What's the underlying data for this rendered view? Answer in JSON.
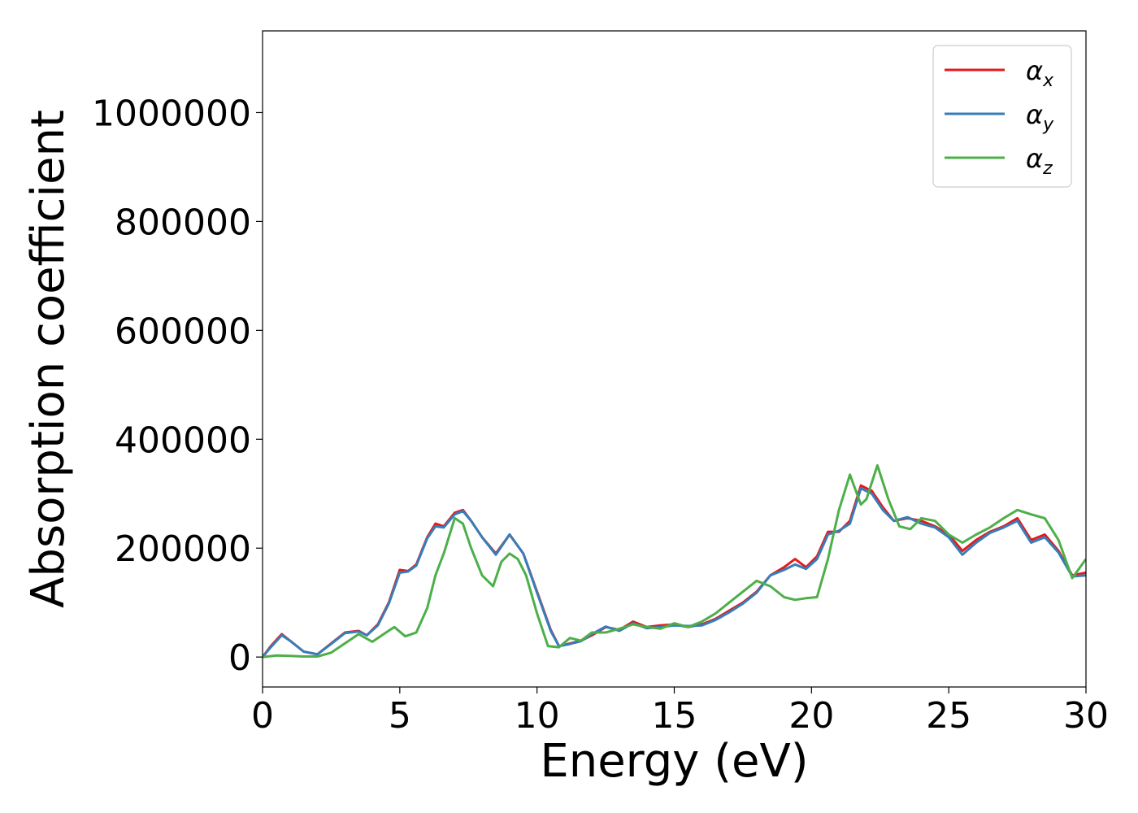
{
  "chart_data": {
    "type": "line",
    "title": "",
    "xlabel": "Energy (eV)",
    "ylabel": "Absorption coefficient",
    "xlim": [
      0,
      30
    ],
    "ylim": [
      -55000,
      1150000
    ],
    "xticks": [
      0,
      5,
      10,
      15,
      20,
      25,
      30
    ],
    "xtick_labels": [
      "0",
      "5",
      "10",
      "15",
      "20",
      "25",
      "30"
    ],
    "yticks": [
      0,
      200000,
      400000,
      600000,
      800000,
      1000000
    ],
    "ytick_labels": [
      "0",
      "200000",
      "400000",
      "600000",
      "800000",
      "1000000"
    ],
    "grid": false,
    "legend_position": "top-right",
    "series": [
      {
        "name": "α",
        "subscript": "x",
        "color": "#e41a1c",
        "x": [
          0,
          0.3,
          0.7,
          1.0,
          1.5,
          2.0,
          2.5,
          3.0,
          3.5,
          3.8,
          4.2,
          4.6,
          5.0,
          5.3,
          5.6,
          6.0,
          6.3,
          6.6,
          7.0,
          7.3,
          7.6,
          8.0,
          8.5,
          9.0,
          9.5,
          10.0,
          10.5,
          10.8,
          11.2,
          11.6,
          12.0,
          12.5,
          13.0,
          13.5,
          14.0,
          14.5,
          15.0,
          15.5,
          16.0,
          16.5,
          17.0,
          17.5,
          18.0,
          18.5,
          19.0,
          19.4,
          19.8,
          20.2,
          20.6,
          21.0,
          21.4,
          21.8,
          22.2,
          22.6,
          23.0,
          23.5,
          24.0,
          24.5,
          25.0,
          25.5,
          26.0,
          26.5,
          27.0,
          27.5,
          28.0,
          28.5,
          29.0,
          29.5,
          30.0
        ],
        "y": [
          0,
          20000,
          42000,
          30000,
          10000,
          5000,
          25000,
          45000,
          48000,
          40000,
          60000,
          100000,
          160000,
          158000,
          170000,
          220000,
          245000,
          240000,
          265000,
          270000,
          250000,
          220000,
          190000,
          225000,
          190000,
          120000,
          50000,
          20000,
          25000,
          30000,
          40000,
          55000,
          50000,
          65000,
          55000,
          58000,
          60000,
          55000,
          60000,
          70000,
          85000,
          100000,
          120000,
          150000,
          165000,
          180000,
          165000,
          185000,
          230000,
          230000,
          250000,
          315000,
          305000,
          275000,
          250000,
          255000,
          250000,
          240000,
          225000,
          195000,
          215000,
          230000,
          240000,
          255000,
          215000,
          225000,
          195000,
          150000,
          155000
        ]
      },
      {
        "name": "α",
        "subscript": "y",
        "color": "#377eb8",
        "x": [
          0,
          0.3,
          0.7,
          1.0,
          1.5,
          2.0,
          2.5,
          3.0,
          3.5,
          3.8,
          4.2,
          4.6,
          5.0,
          5.3,
          5.6,
          6.0,
          6.3,
          6.6,
          7.0,
          7.3,
          7.6,
          8.0,
          8.5,
          9.0,
          9.5,
          10.0,
          10.5,
          10.8,
          11.2,
          11.6,
          12.0,
          12.5,
          13.0,
          13.5,
          14.0,
          14.5,
          15.0,
          15.5,
          16.0,
          16.5,
          17.0,
          17.5,
          18.0,
          18.5,
          19.0,
          19.4,
          19.8,
          20.2,
          20.6,
          21.0,
          21.4,
          21.8,
          22.2,
          22.6,
          23.0,
          23.5,
          24.0,
          24.5,
          25.0,
          25.5,
          26.0,
          26.5,
          27.0,
          27.5,
          28.0,
          28.5,
          29.0,
          29.5,
          30.0
        ],
        "y": [
          0,
          18000,
          40000,
          30000,
          10000,
          5000,
          24000,
          44000,
          47000,
          40000,
          58000,
          98000,
          155000,
          157000,
          168000,
          218000,
          240000,
          238000,
          262000,
          268000,
          250000,
          220000,
          188000,
          225000,
          190000,
          118000,
          48000,
          20000,
          24000,
          29000,
          42000,
          56000,
          48000,
          62000,
          53000,
          55000,
          58000,
          57000,
          58000,
          68000,
          82000,
          98000,
          118000,
          150000,
          160000,
          170000,
          162000,
          180000,
          225000,
          232000,
          245000,
          310000,
          300000,
          270000,
          250000,
          257000,
          245000,
          238000,
          220000,
          188000,
          210000,
          228000,
          238000,
          250000,
          210000,
          220000,
          192000,
          148000,
          150000
        ]
      },
      {
        "name": "α",
        "subscript": "z",
        "color": "#4daf4a",
        "x": [
          0,
          0.5,
          1.0,
          1.5,
          2.0,
          2.5,
          3.0,
          3.5,
          4.0,
          4.5,
          4.8,
          5.2,
          5.6,
          6.0,
          6.3,
          6.6,
          7.0,
          7.3,
          7.6,
          8.0,
          8.4,
          8.7,
          9.0,
          9.3,
          9.6,
          10.0,
          10.4,
          10.8,
          11.2,
          11.6,
          12.0,
          12.5,
          13.0,
          13.5,
          14.0,
          14.5,
          15.0,
          15.5,
          16.0,
          16.5,
          17.0,
          17.5,
          18.0,
          18.5,
          19.0,
          19.4,
          19.8,
          20.2,
          20.6,
          21.0,
          21.4,
          21.8,
          22.0,
          22.4,
          22.8,
          23.2,
          23.6,
          24.0,
          24.5,
          25.0,
          25.5,
          26.0,
          26.5,
          27.0,
          27.5,
          28.0,
          28.5,
          29.0,
          29.5,
          30.0
        ],
        "y": [
          0,
          3000,
          2000,
          1000,
          1000,
          8000,
          25000,
          42000,
          28000,
          45000,
          55000,
          38000,
          45000,
          90000,
          150000,
          190000,
          255000,
          245000,
          200000,
          150000,
          130000,
          175000,
          190000,
          180000,
          150000,
          80000,
          20000,
          18000,
          35000,
          30000,
          45000,
          45000,
          52000,
          60000,
          55000,
          52000,
          62000,
          55000,
          65000,
          80000,
          100000,
          120000,
          140000,
          130000,
          110000,
          105000,
          108000,
          110000,
          180000,
          270000,
          335000,
          280000,
          290000,
          352000,
          290000,
          240000,
          235000,
          255000,
          250000,
          225000,
          210000,
          225000,
          238000,
          255000,
          270000,
          262000,
          255000,
          215000,
          145000,
          180000
        ]
      }
    ]
  }
}
